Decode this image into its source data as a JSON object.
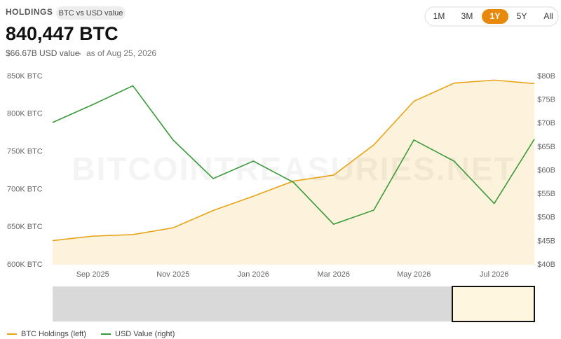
{
  "header": {
    "label": "HOLDINGS",
    "badge": "BTC vs USD value",
    "value": "840,447 BTC",
    "usd_value": "$66.67B USD value",
    "as_of": "as of Aug 25, 2026"
  },
  "range_buttons": [
    "1M",
    "3M",
    "1Y",
    "5Y",
    "All"
  ],
  "active_button": 2,
  "chart_data": {
    "type": "line",
    "watermark": "BITCOINTREASURIES.NET",
    "x": [
      null,
      "Sep 2025",
      null,
      "Nov 2025",
      null,
      "Jan 2026",
      null,
      "Mar 2026",
      null,
      "May 2026",
      null,
      "Jul 2026",
      null
    ],
    "series": [
      {
        "name": "BTC Holdings (left)",
        "color": "#e8a317",
        "axis": "y",
        "values": [
          632000,
          638000,
          640000,
          649000,
          672000,
          691000,
          711000,
          719000,
          759000,
          817000,
          841000,
          845000,
          840447
        ]
      },
      {
        "name": "USD Value (right)",
        "color": "#3a9a3a",
        "axis": "y2",
        "values": [
          70.2,
          74,
          78,
          66.5,
          58.3,
          62,
          57.5,
          48.6,
          51.6,
          66.5,
          62,
          53,
          66.67
        ]
      }
    ],
    "ylim": [
      600000,
      850000
    ],
    "yticks": [
      {
        "value": 600000,
        "label": "600K BTC"
      },
      {
        "value": 650000,
        "label": "650K BTC"
      },
      {
        "value": 700000,
        "label": "700K BTC"
      },
      {
        "value": 750000,
        "label": "750K BTC"
      },
      {
        "value": 800000,
        "label": "800K BTC"
      },
      {
        "value": 850000,
        "label": "850K BTC"
      }
    ],
    "y2lim": [
      40,
      80
    ],
    "y2ticks": [
      {
        "value": 40,
        "label": "$40B"
      },
      {
        "value": 45,
        "label": "$45B"
      },
      {
        "value": 50,
        "label": "$50B"
      },
      {
        "value": 55,
        "label": "$55B"
      },
      {
        "value": 60,
        "label": "$60B"
      },
      {
        "value": 65,
        "label": "$65B"
      },
      {
        "value": 70,
        "label": "$70B"
      },
      {
        "value": 75,
        "label": "$75B"
      },
      {
        "value": 80,
        "label": "$80B"
      }
    ],
    "area_fill": "#fdf3dc",
    "legend": "bottom-left"
  }
}
